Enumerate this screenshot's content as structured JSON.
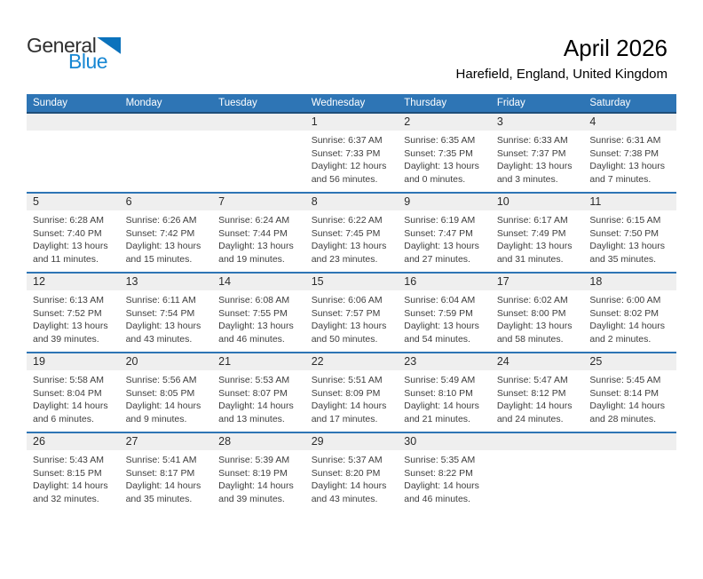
{
  "logo": {
    "text_general": "General",
    "text_blue": "Blue"
  },
  "header": {
    "title": "April 2026",
    "subtitle": "Harefield, England, United Kingdom"
  },
  "colors": {
    "header_bar": "#2e75b5",
    "header_underline": "#1f4e79",
    "row_divider": "#2e75b5",
    "day_number_band": "#efefef",
    "logo_blue": "#1787d3",
    "logo_triangle": "#0b72bc"
  },
  "calendar": {
    "weekday_headers": [
      "Sunday",
      "Monday",
      "Tuesday",
      "Wednesday",
      "Thursday",
      "Friday",
      "Saturday"
    ],
    "weeks": [
      {
        "days": [
          null,
          null,
          null,
          {
            "day": "1",
            "sunrise": "Sunrise: 6:37 AM",
            "sunset": "Sunset: 7:33 PM",
            "daylight": "Daylight: 12 hours and 56 minutes."
          },
          {
            "day": "2",
            "sunrise": "Sunrise: 6:35 AM",
            "sunset": "Sunset: 7:35 PM",
            "daylight": "Daylight: 13 hours and 0 minutes."
          },
          {
            "day": "3",
            "sunrise": "Sunrise: 6:33 AM",
            "sunset": "Sunset: 7:37 PM",
            "daylight": "Daylight: 13 hours and 3 minutes."
          },
          {
            "day": "4",
            "sunrise": "Sunrise: 6:31 AM",
            "sunset": "Sunset: 7:38 PM",
            "daylight": "Daylight: 13 hours and 7 minutes."
          }
        ]
      },
      {
        "days": [
          {
            "day": "5",
            "sunrise": "Sunrise: 6:28 AM",
            "sunset": "Sunset: 7:40 PM",
            "daylight": "Daylight: 13 hours and 11 minutes."
          },
          {
            "day": "6",
            "sunrise": "Sunrise: 6:26 AM",
            "sunset": "Sunset: 7:42 PM",
            "daylight": "Daylight: 13 hours and 15 minutes."
          },
          {
            "day": "7",
            "sunrise": "Sunrise: 6:24 AM",
            "sunset": "Sunset: 7:44 PM",
            "daylight": "Daylight: 13 hours and 19 minutes."
          },
          {
            "day": "8",
            "sunrise": "Sunrise: 6:22 AM",
            "sunset": "Sunset: 7:45 PM",
            "daylight": "Daylight: 13 hours and 23 minutes."
          },
          {
            "day": "9",
            "sunrise": "Sunrise: 6:19 AM",
            "sunset": "Sunset: 7:47 PM",
            "daylight": "Daylight: 13 hours and 27 minutes."
          },
          {
            "day": "10",
            "sunrise": "Sunrise: 6:17 AM",
            "sunset": "Sunset: 7:49 PM",
            "daylight": "Daylight: 13 hours and 31 minutes."
          },
          {
            "day": "11",
            "sunrise": "Sunrise: 6:15 AM",
            "sunset": "Sunset: 7:50 PM",
            "daylight": "Daylight: 13 hours and 35 minutes."
          }
        ]
      },
      {
        "days": [
          {
            "day": "12",
            "sunrise": "Sunrise: 6:13 AM",
            "sunset": "Sunset: 7:52 PM",
            "daylight": "Daylight: 13 hours and 39 minutes."
          },
          {
            "day": "13",
            "sunrise": "Sunrise: 6:11 AM",
            "sunset": "Sunset: 7:54 PM",
            "daylight": "Daylight: 13 hours and 43 minutes."
          },
          {
            "day": "14",
            "sunrise": "Sunrise: 6:08 AM",
            "sunset": "Sunset: 7:55 PM",
            "daylight": "Daylight: 13 hours and 46 minutes."
          },
          {
            "day": "15",
            "sunrise": "Sunrise: 6:06 AM",
            "sunset": "Sunset: 7:57 PM",
            "daylight": "Daylight: 13 hours and 50 minutes."
          },
          {
            "day": "16",
            "sunrise": "Sunrise: 6:04 AM",
            "sunset": "Sunset: 7:59 PM",
            "daylight": "Daylight: 13 hours and 54 minutes."
          },
          {
            "day": "17",
            "sunrise": "Sunrise: 6:02 AM",
            "sunset": "Sunset: 8:00 PM",
            "daylight": "Daylight: 13 hours and 58 minutes."
          },
          {
            "day": "18",
            "sunrise": "Sunrise: 6:00 AM",
            "sunset": "Sunset: 8:02 PM",
            "daylight": "Daylight: 14 hours and 2 minutes."
          }
        ]
      },
      {
        "days": [
          {
            "day": "19",
            "sunrise": "Sunrise: 5:58 AM",
            "sunset": "Sunset: 8:04 PM",
            "daylight": "Daylight: 14 hours and 6 minutes."
          },
          {
            "day": "20",
            "sunrise": "Sunrise: 5:56 AM",
            "sunset": "Sunset: 8:05 PM",
            "daylight": "Daylight: 14 hours and 9 minutes."
          },
          {
            "day": "21",
            "sunrise": "Sunrise: 5:53 AM",
            "sunset": "Sunset: 8:07 PM",
            "daylight": "Daylight: 14 hours and 13 minutes."
          },
          {
            "day": "22",
            "sunrise": "Sunrise: 5:51 AM",
            "sunset": "Sunset: 8:09 PM",
            "daylight": "Daylight: 14 hours and 17 minutes."
          },
          {
            "day": "23",
            "sunrise": "Sunrise: 5:49 AM",
            "sunset": "Sunset: 8:10 PM",
            "daylight": "Daylight: 14 hours and 21 minutes."
          },
          {
            "day": "24",
            "sunrise": "Sunrise: 5:47 AM",
            "sunset": "Sunset: 8:12 PM",
            "daylight": "Daylight: 14 hours and 24 minutes."
          },
          {
            "day": "25",
            "sunrise": "Sunrise: 5:45 AM",
            "sunset": "Sunset: 8:14 PM",
            "daylight": "Daylight: 14 hours and 28 minutes."
          }
        ]
      },
      {
        "days": [
          {
            "day": "26",
            "sunrise": "Sunrise: 5:43 AM",
            "sunset": "Sunset: 8:15 PM",
            "daylight": "Daylight: 14 hours and 32 minutes."
          },
          {
            "day": "27",
            "sunrise": "Sunrise: 5:41 AM",
            "sunset": "Sunset: 8:17 PM",
            "daylight": "Daylight: 14 hours and 35 minutes."
          },
          {
            "day": "28",
            "sunrise": "Sunrise: 5:39 AM",
            "sunset": "Sunset: 8:19 PM",
            "daylight": "Daylight: 14 hours and 39 minutes."
          },
          {
            "day": "29",
            "sunrise": "Sunrise: 5:37 AM",
            "sunset": "Sunset: 8:20 PM",
            "daylight": "Daylight: 14 hours and 43 minutes."
          },
          {
            "day": "30",
            "sunrise": "Sunrise: 5:35 AM",
            "sunset": "Sunset: 8:22 PM",
            "daylight": "Daylight: 14 hours and 46 minutes."
          },
          null,
          null
        ]
      }
    ]
  }
}
